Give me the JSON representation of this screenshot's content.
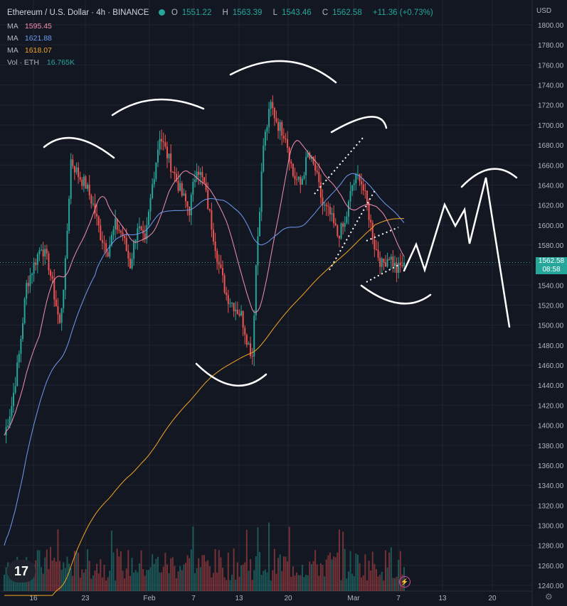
{
  "header": {
    "symbol": "Ethereum / U.S. Dollar · 4h · BINANCE",
    "o_label": "O",
    "o": "1551.22",
    "h_label": "H",
    "h": "1563.39",
    "l_label": "L",
    "l": "1543.46",
    "c_label": "C",
    "c": "1562.58",
    "change": "+11.36 (+0.73%)",
    "status_color": "#26a69a"
  },
  "indicators": [
    {
      "label": "MA",
      "value": "1595.45",
      "color": "#f48fb1"
    },
    {
      "label": "MA",
      "value": "1621.88",
      "color": "#6f9bf1"
    },
    {
      "label": "MA",
      "value": "1618.07",
      "color": "#f5a623"
    },
    {
      "label": "Vol · ETH",
      "value": "16.765K",
      "color": "#26a69a"
    }
  ],
  "price_axis": {
    "currency": "USD",
    "current_price": "1562.58",
    "countdown": "08:58",
    "current_color": "#26a69a"
  },
  "chart_data": {
    "type": "candlestick",
    "ylim": [
      1230,
      1810
    ],
    "y_ticks": [
      1240,
      1260,
      1280,
      1300,
      1320,
      1340,
      1360,
      1380,
      1400,
      1420,
      1440,
      1460,
      1480,
      1500,
      1520,
      1540,
      1560,
      1580,
      1600,
      1620,
      1640,
      1660,
      1680,
      1700,
      1720,
      1740,
      1760,
      1780,
      1800
    ],
    "x_ticks": [
      "16",
      "23",
      "Feb",
      "7",
      "13",
      "20",
      "Mar",
      "7",
      "13",
      "20"
    ],
    "close_path": [
      [
        0,
        1390
      ],
      [
        4,
        1420
      ],
      [
        8,
        1470
      ],
      [
        12,
        1540
      ],
      [
        16,
        1560
      ],
      [
        20,
        1580
      ],
      [
        24,
        1560
      ],
      [
        28,
        1520
      ],
      [
        30,
        1500
      ],
      [
        33,
        1560
      ],
      [
        36,
        1665
      ],
      [
        40,
        1650
      ],
      [
        44,
        1640
      ],
      [
        48,
        1620
      ],
      [
        52,
        1590
      ],
      [
        56,
        1575
      ],
      [
        60,
        1600
      ],
      [
        64,
        1590
      ],
      [
        68,
        1560
      ],
      [
        72,
        1600
      ],
      [
        76,
        1580
      ],
      [
        80,
        1640
      ],
      [
        84,
        1690
      ],
      [
        88,
        1670
      ],
      [
        92,
        1650
      ],
      [
        96,
        1630
      ],
      [
        100,
        1615
      ],
      [
        104,
        1660
      ],
      [
        108,
        1640
      ],
      [
        112,
        1600
      ],
      [
        116,
        1560
      ],
      [
        120,
        1530
      ],
      [
        124,
        1520
      ],
      [
        128,
        1510
      ],
      [
        132,
        1480
      ],
      [
        134,
        1470
      ],
      [
        136,
        1560
      ],
      [
        140,
        1680
      ],
      [
        144,
        1720
      ],
      [
        148,
        1700
      ],
      [
        152,
        1690
      ],
      [
        156,
        1650
      ],
      [
        160,
        1640
      ],
      [
        164,
        1670
      ],
      [
        168,
        1655
      ],
      [
        172,
        1620
      ],
      [
        176,
        1610
      ],
      [
        180,
        1590
      ],
      [
        184,
        1600
      ],
      [
        188,
        1640
      ],
      [
        192,
        1650
      ],
      [
        196,
        1620
      ],
      [
        200,
        1580
      ],
      [
        204,
        1560
      ],
      [
        208,
        1570
      ],
      [
        212,
        1555
      ],
      [
        216,
        1562
      ]
    ],
    "ma_series": [
      {
        "name": "MA",
        "value": "1595.45",
        "color": "#f48fb1",
        "period": 20
      },
      {
        "name": "MA",
        "value": "1621.88",
        "color": "#6f9bf1",
        "period": 50
      },
      {
        "name": "MA",
        "value": "1618.07",
        "color": "#f5a623",
        "period": 200
      }
    ],
    "grid": true,
    "colors": {
      "up": "#26a69a",
      "down": "#ef5350",
      "background": "#131722",
      "grid": "#1f2430"
    }
  }
}
